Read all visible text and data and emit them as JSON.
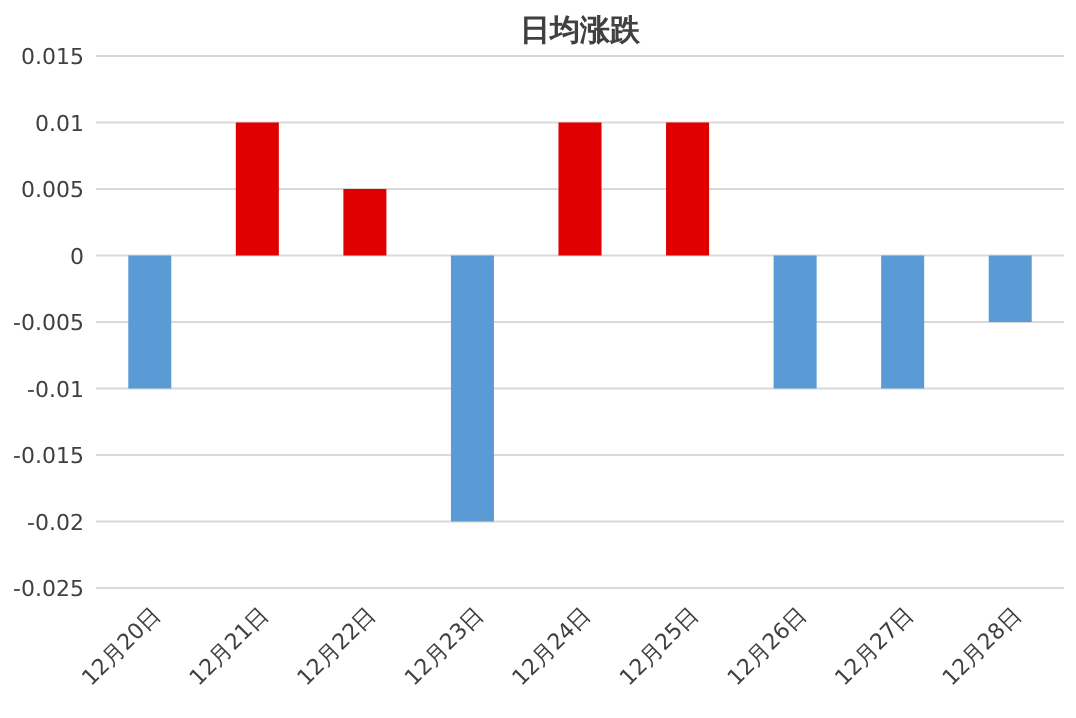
{
  "chart_data": {
    "type": "bar",
    "title": "日均涨跌",
    "categories": [
      "12月20日",
      "12月21日",
      "12月22日",
      "12月23日",
      "12月24日",
      "12月25日",
      "12月26日",
      "12月27日",
      "12月28日"
    ],
    "values": [
      -0.01,
      0.01,
      0.005,
      -0.02,
      0.01,
      0.01,
      -0.01,
      -0.01,
      -0.005
    ],
    "colors": [
      "#5b9bd5",
      "#e00000",
      "#e00000",
      "#5b9bd5",
      "#e00000",
      "#e00000",
      "#5b9bd5",
      "#5b9bd5",
      "#5b9bd5"
    ],
    "ylim": [
      -0.025,
      0.015
    ],
    "yticks": [
      -0.025,
      -0.02,
      -0.015,
      -0.01,
      -0.005,
      0,
      0.005,
      0.01,
      0.015
    ],
    "grid": "y"
  }
}
